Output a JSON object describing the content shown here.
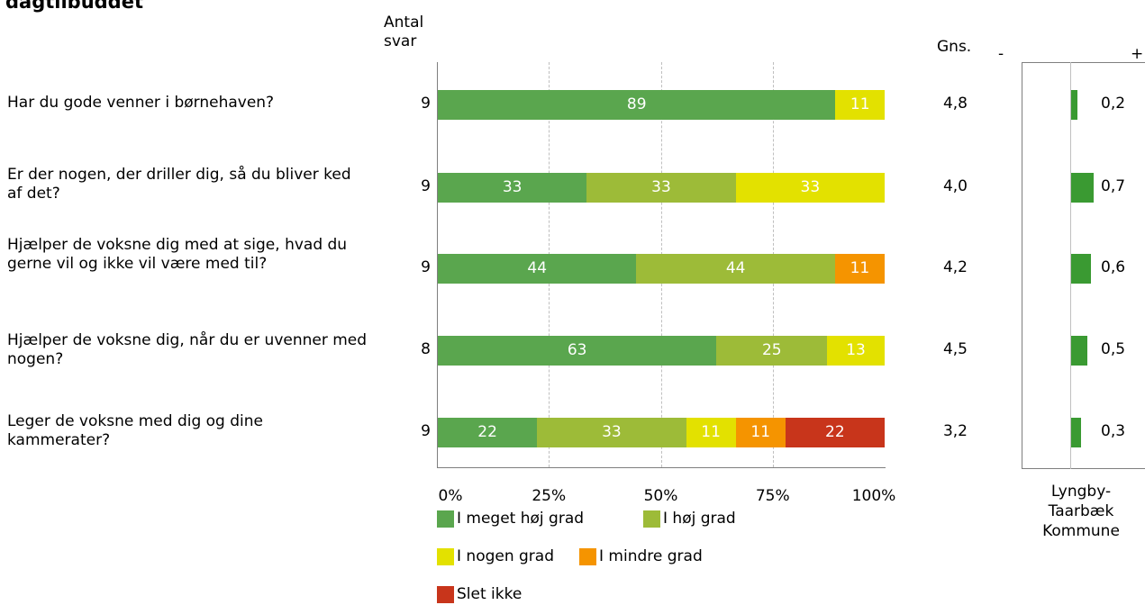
{
  "title": "dagtilbuddet",
  "header": {
    "count_line1": "Antal",
    "count_line2": "svar",
    "avg": "Gns.",
    "minus": "-",
    "plus": "+"
  },
  "colors": {
    "I meget høj grad": "#5aa64e",
    "I høj grad": "#9dbb38",
    "I nogen grad": "#e3e100",
    "I mindre grad": "#f59400",
    "Slet ikke": "#c8351b"
  },
  "questions": [
    {
      "text": "Har du gode venner i børnehaven?",
      "count": "9",
      "avg": "4,8",
      "diff": "0,2",
      "diff_value": 0.2
    },
    {
      "text": "Er der nogen, der driller dig, så du bliver ked af det?",
      "count": "9",
      "avg": "4,0",
      "diff": "0,7",
      "diff_value": 0.7
    },
    {
      "text": "Hjælper de voksne dig med at sige, hvad du gerne vil og ikke vil være med til?",
      "count": "9",
      "avg": "4,2",
      "diff": "0,6",
      "diff_value": 0.6
    },
    {
      "text": "Hjælper de voksne dig, når du er uvenner med nogen?",
      "count": "8",
      "avg": "4,5",
      "diff": "0,5",
      "diff_value": 0.5
    },
    {
      "text": "Leger de voksne med dig og dine kammerater?",
      "count": "9",
      "avg": "3,2",
      "diff": "0,3",
      "diff_value": 0.3
    }
  ],
  "chart_data": {
    "type": "bar",
    "stacked": true,
    "orientation": "horizontal",
    "xlim": [
      0,
      100
    ],
    "x_ticks": [
      "0%",
      "25%",
      "50%",
      "75%",
      "100%"
    ],
    "series": [
      {
        "name": "I meget høj grad",
        "values": [
          89,
          33,
          44,
          63,
          22
        ]
      },
      {
        "name": "I høj grad",
        "values": [
          0,
          33,
          44,
          25,
          33
        ]
      },
      {
        "name": "I nogen grad",
        "values": [
          11,
          33,
          0,
          13,
          11
        ]
      },
      {
        "name": "I mindre grad",
        "values": [
          0,
          0,
          11,
          0,
          11
        ]
      },
      {
        "name": "Slet ikke",
        "values": [
          0,
          0,
          0,
          0,
          22
        ]
      }
    ]
  },
  "legend": [
    {
      "label": "I meget høj grad"
    },
    {
      "label": "I høj grad"
    },
    {
      "label": "I nogen grad"
    },
    {
      "label": "I mindre grad"
    },
    {
      "label": "Slet ikke"
    }
  ],
  "comparison": {
    "footer_line1": "Lyngby-",
    "footer_line2": "Taarbæk",
    "footer_line3": "Kommune"
  }
}
